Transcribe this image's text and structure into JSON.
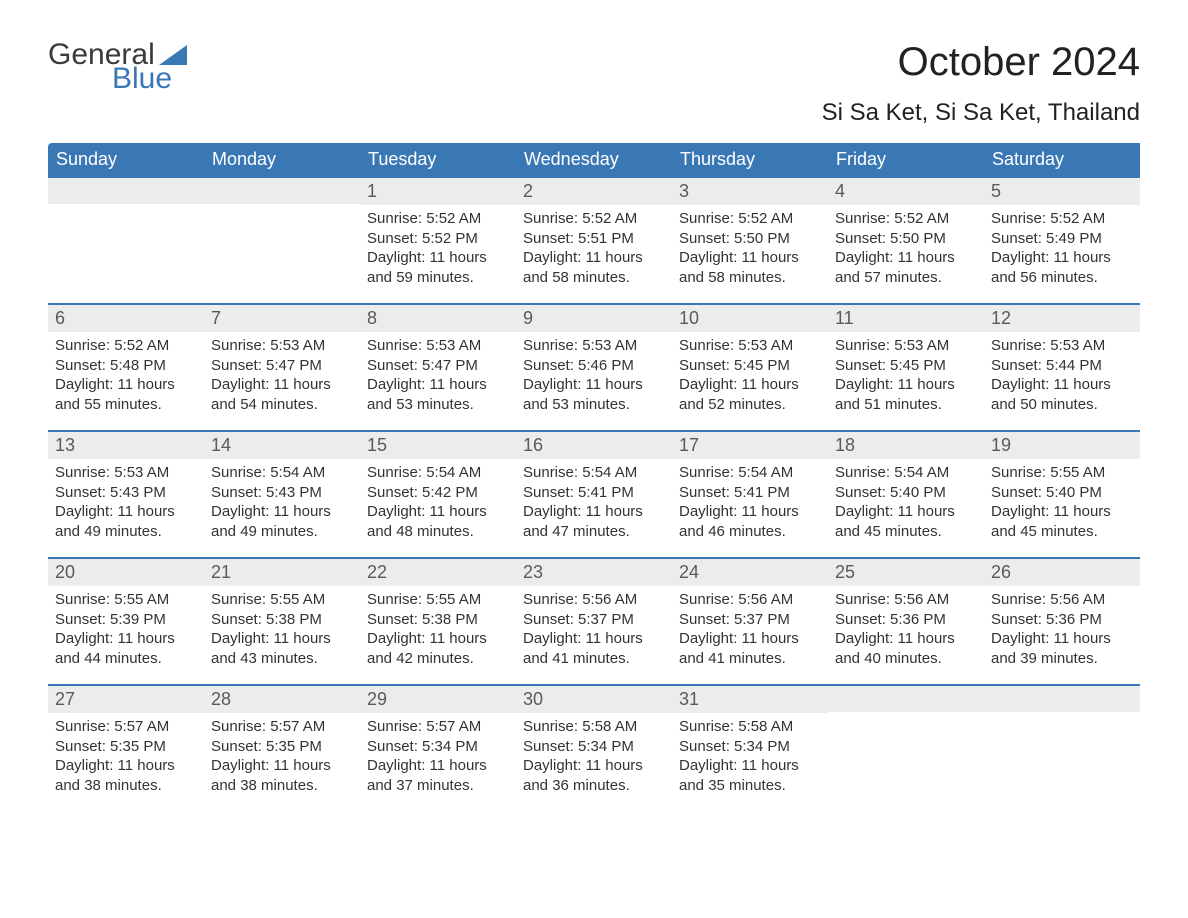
{
  "brand": {
    "text1": "General",
    "text2": "Blue",
    "flag_color": "#3a78b5"
  },
  "title": "October 2024",
  "location": "Si Sa Ket, Si Sa Ket, Thailand",
  "colors": {
    "header_bg": "#3a78b5",
    "header_text": "#ffffff",
    "daynum_bg": "#ececec",
    "daynum_text": "#5a5a5a",
    "border": "#3a78b5",
    "body_text": "#333333"
  },
  "day_labels": [
    "Sunday",
    "Monday",
    "Tuesday",
    "Wednesday",
    "Thursday",
    "Friday",
    "Saturday"
  ],
  "weeks": [
    [
      {
        "day": "",
        "sunrise": "",
        "sunset": "",
        "daylight": ""
      },
      {
        "day": "",
        "sunrise": "",
        "sunset": "",
        "daylight": ""
      },
      {
        "day": "1",
        "sunrise": "Sunrise: 5:52 AM",
        "sunset": "Sunset: 5:52 PM",
        "daylight": "Daylight: 11 hours and 59 minutes."
      },
      {
        "day": "2",
        "sunrise": "Sunrise: 5:52 AM",
        "sunset": "Sunset: 5:51 PM",
        "daylight": "Daylight: 11 hours and 58 minutes."
      },
      {
        "day": "3",
        "sunrise": "Sunrise: 5:52 AM",
        "sunset": "Sunset: 5:50 PM",
        "daylight": "Daylight: 11 hours and 58 minutes."
      },
      {
        "day": "4",
        "sunrise": "Sunrise: 5:52 AM",
        "sunset": "Sunset: 5:50 PM",
        "daylight": "Daylight: 11 hours and 57 minutes."
      },
      {
        "day": "5",
        "sunrise": "Sunrise: 5:52 AM",
        "sunset": "Sunset: 5:49 PM",
        "daylight": "Daylight: 11 hours and 56 minutes."
      }
    ],
    [
      {
        "day": "6",
        "sunrise": "Sunrise: 5:52 AM",
        "sunset": "Sunset: 5:48 PM",
        "daylight": "Daylight: 11 hours and 55 minutes."
      },
      {
        "day": "7",
        "sunrise": "Sunrise: 5:53 AM",
        "sunset": "Sunset: 5:47 PM",
        "daylight": "Daylight: 11 hours and 54 minutes."
      },
      {
        "day": "8",
        "sunrise": "Sunrise: 5:53 AM",
        "sunset": "Sunset: 5:47 PM",
        "daylight": "Daylight: 11 hours and 53 minutes."
      },
      {
        "day": "9",
        "sunrise": "Sunrise: 5:53 AM",
        "sunset": "Sunset: 5:46 PM",
        "daylight": "Daylight: 11 hours and 53 minutes."
      },
      {
        "day": "10",
        "sunrise": "Sunrise: 5:53 AM",
        "sunset": "Sunset: 5:45 PM",
        "daylight": "Daylight: 11 hours and 52 minutes."
      },
      {
        "day": "11",
        "sunrise": "Sunrise: 5:53 AM",
        "sunset": "Sunset: 5:45 PM",
        "daylight": "Daylight: 11 hours and 51 minutes."
      },
      {
        "day": "12",
        "sunrise": "Sunrise: 5:53 AM",
        "sunset": "Sunset: 5:44 PM",
        "daylight": "Daylight: 11 hours and 50 minutes."
      }
    ],
    [
      {
        "day": "13",
        "sunrise": "Sunrise: 5:53 AM",
        "sunset": "Sunset: 5:43 PM",
        "daylight": "Daylight: 11 hours and 49 minutes."
      },
      {
        "day": "14",
        "sunrise": "Sunrise: 5:54 AM",
        "sunset": "Sunset: 5:43 PM",
        "daylight": "Daylight: 11 hours and 49 minutes."
      },
      {
        "day": "15",
        "sunrise": "Sunrise: 5:54 AM",
        "sunset": "Sunset: 5:42 PM",
        "daylight": "Daylight: 11 hours and 48 minutes."
      },
      {
        "day": "16",
        "sunrise": "Sunrise: 5:54 AM",
        "sunset": "Sunset: 5:41 PM",
        "daylight": "Daylight: 11 hours and 47 minutes."
      },
      {
        "day": "17",
        "sunrise": "Sunrise: 5:54 AM",
        "sunset": "Sunset: 5:41 PM",
        "daylight": "Daylight: 11 hours and 46 minutes."
      },
      {
        "day": "18",
        "sunrise": "Sunrise: 5:54 AM",
        "sunset": "Sunset: 5:40 PM",
        "daylight": "Daylight: 11 hours and 45 minutes."
      },
      {
        "day": "19",
        "sunrise": "Sunrise: 5:55 AM",
        "sunset": "Sunset: 5:40 PM",
        "daylight": "Daylight: 11 hours and 45 minutes."
      }
    ],
    [
      {
        "day": "20",
        "sunrise": "Sunrise: 5:55 AM",
        "sunset": "Sunset: 5:39 PM",
        "daylight": "Daylight: 11 hours and 44 minutes."
      },
      {
        "day": "21",
        "sunrise": "Sunrise: 5:55 AM",
        "sunset": "Sunset: 5:38 PM",
        "daylight": "Daylight: 11 hours and 43 minutes."
      },
      {
        "day": "22",
        "sunrise": "Sunrise: 5:55 AM",
        "sunset": "Sunset: 5:38 PM",
        "daylight": "Daylight: 11 hours and 42 minutes."
      },
      {
        "day": "23",
        "sunrise": "Sunrise: 5:56 AM",
        "sunset": "Sunset: 5:37 PM",
        "daylight": "Daylight: 11 hours and 41 minutes."
      },
      {
        "day": "24",
        "sunrise": "Sunrise: 5:56 AM",
        "sunset": "Sunset: 5:37 PM",
        "daylight": "Daylight: 11 hours and 41 minutes."
      },
      {
        "day": "25",
        "sunrise": "Sunrise: 5:56 AM",
        "sunset": "Sunset: 5:36 PM",
        "daylight": "Daylight: 11 hours and 40 minutes."
      },
      {
        "day": "26",
        "sunrise": "Sunrise: 5:56 AM",
        "sunset": "Sunset: 5:36 PM",
        "daylight": "Daylight: 11 hours and 39 minutes."
      }
    ],
    [
      {
        "day": "27",
        "sunrise": "Sunrise: 5:57 AM",
        "sunset": "Sunset: 5:35 PM",
        "daylight": "Daylight: 11 hours and 38 minutes."
      },
      {
        "day": "28",
        "sunrise": "Sunrise: 5:57 AM",
        "sunset": "Sunset: 5:35 PM",
        "daylight": "Daylight: 11 hours and 38 minutes."
      },
      {
        "day": "29",
        "sunrise": "Sunrise: 5:57 AM",
        "sunset": "Sunset: 5:34 PM",
        "daylight": "Daylight: 11 hours and 37 minutes."
      },
      {
        "day": "30",
        "sunrise": "Sunrise: 5:58 AM",
        "sunset": "Sunset: 5:34 PM",
        "daylight": "Daylight: 11 hours and 36 minutes."
      },
      {
        "day": "31",
        "sunrise": "Sunrise: 5:58 AM",
        "sunset": "Sunset: 5:34 PM",
        "daylight": "Daylight: 11 hours and 35 minutes."
      },
      {
        "day": "",
        "sunrise": "",
        "sunset": "",
        "daylight": ""
      },
      {
        "day": "",
        "sunrise": "",
        "sunset": "",
        "daylight": ""
      }
    ]
  ]
}
